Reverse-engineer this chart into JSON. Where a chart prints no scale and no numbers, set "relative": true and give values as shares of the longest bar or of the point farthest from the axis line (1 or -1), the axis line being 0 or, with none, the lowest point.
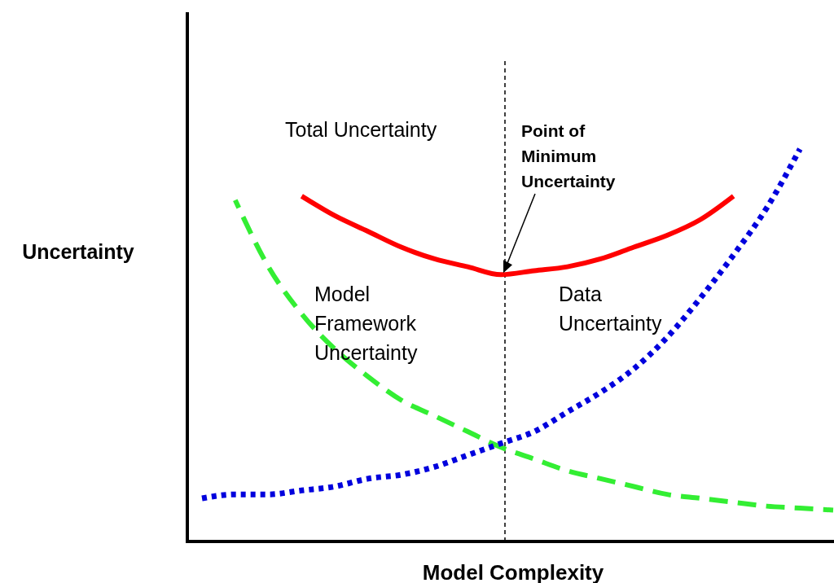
{
  "chart_data": {
    "type": "line",
    "relative": true,
    "xlabel": "Model Complexity",
    "ylabel": "Uncertainty",
    "categories": [
      null,
      null,
      null,
      null,
      null,
      null,
      null,
      null,
      null,
      null,
      null,
      null,
      null,
      null,
      null,
      null,
      null,
      null,
      null,
      null
    ],
    "series": [
      {
        "name": "Total Uncertainty",
        "color": "#ff0000",
        "line_style": "solid",
        "values": [
          null,
          null,
          null,
          0.88,
          0.83,
          0.79,
          0.75,
          0.72,
          0.7,
          0.68,
          0.69,
          0.7,
          0.72,
          0.75,
          0.78,
          0.82,
          0.88,
          null,
          null,
          null
        ]
      },
      {
        "name": "Model Framework Uncertainty",
        "color": "#33ee33",
        "line_style": "dashed",
        "values": [
          null,
          0.87,
          0.7,
          0.58,
          0.49,
          0.42,
          0.36,
          0.32,
          0.28,
          0.24,
          0.21,
          0.18,
          0.16,
          0.14,
          0.12,
          0.11,
          0.1,
          0.09,
          0.085,
          0.08
        ]
      },
      {
        "name": "Data Uncertainty",
        "color": "#0000dd",
        "line_style": "dotted",
        "values": [
          0.11,
          0.12,
          0.12,
          0.13,
          0.14,
          0.16,
          0.17,
          0.19,
          0.22,
          0.25,
          0.28,
          0.33,
          0.38,
          0.44,
          0.52,
          0.62,
          0.73,
          0.85,
          1,
          null
        ]
      }
    ],
    "annotations": [
      "Point of Minimum Uncertainty"
    ]
  }
}
